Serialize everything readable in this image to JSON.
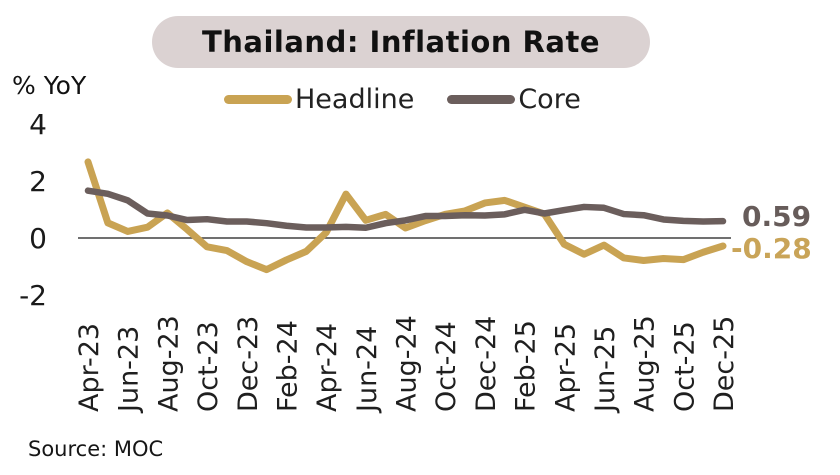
{
  "header": {
    "title": "Thailand: Inflation Rate",
    "unit_label": "% YoY",
    "pill_bg": "#DBD2D2"
  },
  "source": "Source: MOC",
  "colors": {
    "headline": "#C9A353",
    "core": "#6B5E5C",
    "axis_line": "#404040",
    "end_label_headline": "#C9A458",
    "end_label_core": "#675C5A"
  },
  "chart_data": {
    "type": "line",
    "title": "Thailand: Inflation Rate",
    "ylabel": "% YoY",
    "xlabel": "",
    "grid": false,
    "legend_position": "top",
    "ylim": [
      -2.6,
      4.3
    ],
    "y_ticks": [
      4,
      2,
      0,
      -2
    ],
    "x_tick_step": 2,
    "x": [
      "Apr-23",
      "May-23",
      "Jun-23",
      "Jul-23",
      "Aug-23",
      "Sep-23",
      "Oct-23",
      "Nov-23",
      "Dec-23",
      "Jan-24",
      "Feb-24",
      "Mar-24",
      "Apr-24",
      "May-24",
      "Jun-24",
      "Jul-24",
      "Aug-24",
      "Sep-24",
      "Oct-24",
      "Nov-24",
      "Dec-24",
      "Jan-25",
      "Feb-25",
      "Mar-25",
      "Apr-25",
      "May-25",
      "Jun-25",
      "Jul-25",
      "Aug-25",
      "Sep-25",
      "Oct-25",
      "Nov-25",
      "Dec-25"
    ],
    "series": [
      {
        "name": "Headline",
        "color_key": "headline",
        "stroke_width": 7,
        "values": [
          2.67,
          0.53,
          0.23,
          0.38,
          0.88,
          0.3,
          -0.31,
          -0.44,
          -0.83,
          -1.11,
          -0.77,
          -0.47,
          0.19,
          1.54,
          0.62,
          0.83,
          0.35,
          0.61,
          0.83,
          0.95,
          1.23,
          1.32,
          1.08,
          0.84,
          -0.22,
          -0.57,
          -0.25,
          -0.7,
          -0.79,
          -0.72,
          -0.76,
          -0.5,
          -0.28
        ],
        "end_label": "-0.28",
        "end_label_color_key": "end_label_headline"
      },
      {
        "name": "Core",
        "color_key": "core",
        "stroke_width": 6.5,
        "values": [
          1.66,
          1.55,
          1.32,
          0.86,
          0.79,
          0.63,
          0.66,
          0.58,
          0.58,
          0.52,
          0.43,
          0.37,
          0.37,
          0.39,
          0.36,
          0.52,
          0.62,
          0.77,
          0.77,
          0.8,
          0.79,
          0.83,
          0.99,
          0.86,
          0.98,
          1.09,
          1.06,
          0.84,
          0.8,
          0.65,
          0.6,
          0.58,
          0.59
        ],
        "end_label": "0.59",
        "end_label_color_key": "end_label_core"
      }
    ]
  }
}
